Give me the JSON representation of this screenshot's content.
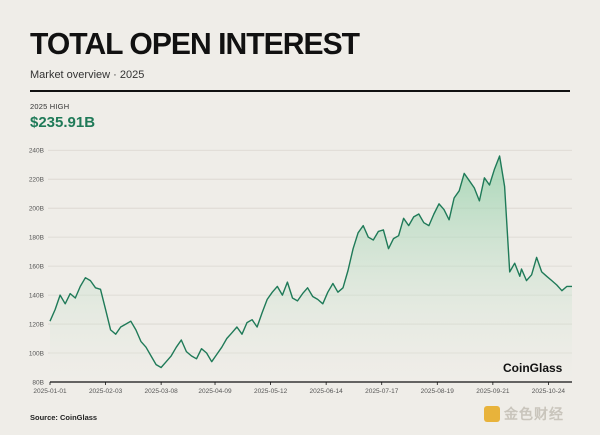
{
  "header": {
    "title": "TOTAL OPEN INTEREST",
    "subtitle": "Market overview · 2025"
  },
  "highlight": {
    "label": "2025 HIGH",
    "value": "$235.91B"
  },
  "watermark": "CoinGlass",
  "source": "Source: CoinGlass",
  "footer_logo_text": "金色财经",
  "colors": {
    "line": "#1f7a58",
    "fill_top": "#8fcfa6",
    "background": "#efede8",
    "accent": "#1f7a58"
  },
  "chart_data": {
    "type": "area",
    "title": "TOTAL OPEN INTEREST",
    "ylabel": "",
    "xlabel": "",
    "ylim": [
      80,
      245
    ],
    "grid": true,
    "y_ticks": [
      80,
      100,
      120,
      140,
      160,
      180,
      200,
      220,
      240
    ],
    "y_tick_labels": [
      "80B",
      "100B",
      "120B",
      "140B",
      "160B",
      "180B",
      "200B",
      "220B",
      "240B"
    ],
    "x_tick_labels": [
      "2025-01-01",
      "2025-02-03",
      "2025-03-08",
      "2025-04-09",
      "2025-05-12",
      "2025-06-14",
      "2025-07-17",
      "2025-08-19",
      "2025-09-21",
      "2025-10-24"
    ],
    "x": [
      "2025-01-01",
      "2025-01-04",
      "2025-01-07",
      "2025-01-10",
      "2025-01-13",
      "2025-01-16",
      "2025-01-19",
      "2025-01-22",
      "2025-01-25",
      "2025-01-28",
      "2025-01-31",
      "2025-02-03",
      "2025-02-06",
      "2025-02-09",
      "2025-02-12",
      "2025-02-15",
      "2025-02-18",
      "2025-02-21",
      "2025-02-24",
      "2025-02-27",
      "2025-03-02",
      "2025-03-05",
      "2025-03-08",
      "2025-03-11",
      "2025-03-14",
      "2025-03-17",
      "2025-03-20",
      "2025-03-23",
      "2025-03-26",
      "2025-03-29",
      "2025-04-01",
      "2025-04-04",
      "2025-04-07",
      "2025-04-10",
      "2025-04-13",
      "2025-04-16",
      "2025-04-19",
      "2025-04-22",
      "2025-04-25",
      "2025-04-28",
      "2025-05-01",
      "2025-05-04",
      "2025-05-07",
      "2025-05-10",
      "2025-05-13",
      "2025-05-16",
      "2025-05-19",
      "2025-05-22",
      "2025-05-25",
      "2025-05-28",
      "2025-05-31",
      "2025-06-03",
      "2025-06-06",
      "2025-06-09",
      "2025-06-12",
      "2025-06-15",
      "2025-06-18",
      "2025-06-21",
      "2025-06-24",
      "2025-06-27",
      "2025-06-30",
      "2025-07-03",
      "2025-07-06",
      "2025-07-09",
      "2025-07-12",
      "2025-07-15",
      "2025-07-18",
      "2025-07-21",
      "2025-07-24",
      "2025-07-27",
      "2025-07-30",
      "2025-08-02",
      "2025-08-05",
      "2025-08-08",
      "2025-08-11",
      "2025-08-14",
      "2025-08-17",
      "2025-08-20",
      "2025-08-23",
      "2025-08-26",
      "2025-08-29",
      "2025-09-01",
      "2025-09-04",
      "2025-09-07",
      "2025-09-10",
      "2025-09-13",
      "2025-09-16",
      "2025-09-19",
      "2025-09-22",
      "2025-09-25",
      "2025-09-28",
      "2025-10-01",
      "2025-10-04",
      "2025-10-07",
      "2025-10-08",
      "2025-10-11",
      "2025-10-14",
      "2025-10-17",
      "2025-10-20",
      "2025-10-23",
      "2025-10-26",
      "2025-10-29",
      "2025-11-01",
      "2025-11-04",
      "2025-11-07"
    ],
    "series": [
      {
        "values": [
          122,
          130,
          140,
          134,
          141,
          138,
          146,
          152,
          150,
          145,
          144,
          130,
          116,
          113,
          118,
          120,
          122,
          116,
          108,
          104,
          98,
          92,
          90,
          94,
          98,
          104,
          109,
          101,
          98,
          96,
          103,
          100,
          94,
          99,
          104,
          110,
          114,
          118,
          113,
          121,
          123,
          118,
          128,
          137,
          142,
          146,
          140,
          149,
          138,
          136,
          141,
          145,
          139,
          137,
          134,
          142,
          148,
          142,
          145,
          157,
          172,
          183,
          188,
          180,
          178,
          184,
          185,
          172,
          179,
          181,
          193,
          188,
          194,
          196,
          190,
          188,
          196,
          203,
          199,
          192,
          207,
          212,
          224,
          219,
          214,
          205,
          221,
          216,
          227,
          236,
          215,
          156,
          162,
          153,
          158,
          150,
          154,
          166,
          156,
          153,
          150,
          147,
          143,
          146,
          146
        ]
      }
    ]
  }
}
